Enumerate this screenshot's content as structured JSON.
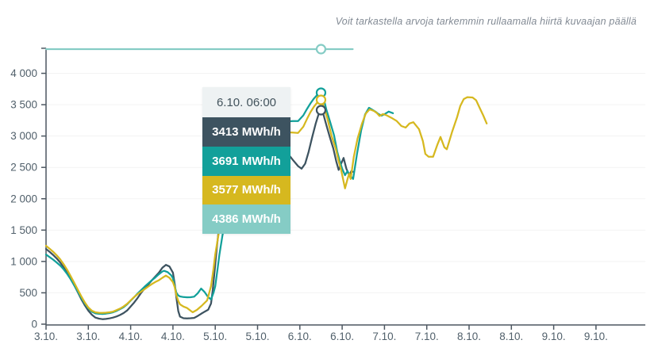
{
  "hint": "Voit tarkastella arvoja tarkemmin rullaamalla hiirtä kuvaajan päällä",
  "tooltip": {
    "time": "6.10. 06:00",
    "rows": [
      {
        "value": "3413 MWh/h",
        "color": "#3d5360"
      },
      {
        "value": "3691 MWh/h",
        "color": "#12a09a"
      },
      {
        "value": "3577 MWh/h",
        "color": "#d6b81f"
      },
      {
        "value": "4386 MWh/h",
        "color": "#85ccc5"
      }
    ]
  },
  "chart_data": {
    "type": "line",
    "unit": "MWh/h",
    "title": "",
    "xlabel": "",
    "ylabel": "",
    "grid": "horizontal-faint",
    "legend_position": "none",
    "ylim": [
      0,
      4400
    ],
    "xlim_hours": [
      0,
      170
    ],
    "y_ticks": [
      0,
      500,
      1000,
      1500,
      2000,
      2500,
      3000,
      3500,
      4000
    ],
    "y_tick_labels": [
      "0",
      "500",
      "1 000",
      "1 500",
      "2 000",
      "2 500",
      "3 000",
      "3 500",
      "4 000"
    ],
    "x_tick_hours": [
      0,
      12,
      24,
      36,
      48,
      60,
      72,
      84,
      96,
      108,
      120,
      132,
      144,
      156
    ],
    "x_tick_labels": [
      "3.10.",
      "3.10.",
      "4.10.",
      "4.10.",
      "5.10.",
      "5.10.",
      "6.10.",
      "6.10.",
      "7.10.",
      "7.10.",
      "8.10.",
      "8.10.",
      "9.10.",
      "9.10."
    ],
    "hover": {
      "hour": 78,
      "label": "6.10. 06:00",
      "values": [
        3413,
        3691,
        3577,
        4386
      ]
    },
    "series": [
      {
        "name": "series-dark-slate",
        "color": "#3d5360",
        "hover_value": 3413,
        "points": [
          [
            0,
            1200
          ],
          [
            1,
            1155
          ],
          [
            2,
            1105
          ],
          [
            3,
            1050
          ],
          [
            4,
            985
          ],
          [
            5,
            905
          ],
          [
            6,
            815
          ],
          [
            7,
            720
          ],
          [
            8,
            620
          ],
          [
            9,
            510
          ],
          [
            10,
            400
          ],
          [
            11,
            300
          ],
          [
            12,
            215
          ],
          [
            13,
            150
          ],
          [
            14,
            105
          ],
          [
            15,
            88
          ],
          [
            16,
            80
          ],
          [
            17,
            83
          ],
          [
            18,
            92
          ],
          [
            19,
            105
          ],
          [
            20,
            122
          ],
          [
            21,
            147
          ],
          [
            22,
            177
          ],
          [
            23,
            219
          ],
          [
            24,
            282
          ],
          [
            25,
            345
          ],
          [
            26,
            420
          ],
          [
            27,
            500
          ],
          [
            28,
            570
          ],
          [
            29,
            632
          ],
          [
            30,
            700
          ],
          [
            31,
            760
          ],
          [
            32,
            820
          ],
          [
            33,
            900
          ],
          [
            34,
            945
          ],
          [
            35,
            920
          ],
          [
            36,
            820
          ],
          [
            36.5,
            645
          ],
          [
            37,
            420
          ],
          [
            37.5,
            210
          ],
          [
            38,
            120
          ],
          [
            39,
            95
          ],
          [
            40,
            92
          ],
          [
            41,
            95
          ],
          [
            42,
            100
          ],
          [
            43,
            130
          ],
          [
            44,
            165
          ],
          [
            45,
            200
          ],
          [
            46,
            230
          ],
          [
            46.8,
            330
          ],
          [
            47.3,
            550
          ],
          [
            47.9,
            900
          ],
          [
            48.5,
            1250
          ],
          [
            49,
            1500
          ],
          [
            50,
            1850
          ],
          [
            51,
            2120
          ],
          [
            52,
            2350
          ],
          [
            54,
            2620
          ],
          [
            56,
            2800
          ],
          [
            58,
            2920
          ],
          [
            60,
            2990
          ],
          [
            62,
            3010
          ],
          [
            64,
            2970
          ],
          [
            66,
            2890
          ],
          [
            68,
            2760
          ],
          [
            70,
            2620
          ],
          [
            71.5,
            2520
          ],
          [
            72.5,
            2480
          ],
          [
            73.5,
            2560
          ],
          [
            74.5,
            2750
          ],
          [
            75.5,
            2980
          ],
          [
            76.5,
            3200
          ],
          [
            77.5,
            3380
          ],
          [
            78,
            3413
          ],
          [
            78.7,
            3340
          ],
          [
            79.5,
            3180
          ],
          [
            80.5,
            2980
          ],
          [
            81.5,
            2800
          ],
          [
            82.3,
            2600
          ],
          [
            83,
            2460
          ],
          [
            83.7,
            2560
          ],
          [
            84.4,
            2650
          ],
          [
            85.2,
            2480
          ],
          [
            86,
            2375
          ],
          [
            86.6,
            2440
          ],
          [
            87,
            2430
          ]
        ]
      },
      {
        "name": "series-teal",
        "color": "#12a09a",
        "hover_value": 3691,
        "points": [
          [
            0,
            1110
          ],
          [
            1,
            1070
          ],
          [
            2,
            1030
          ],
          [
            3,
            985
          ],
          [
            4,
            935
          ],
          [
            5,
            875
          ],
          [
            6,
            800
          ],
          [
            7,
            715
          ],
          [
            8,
            620
          ],
          [
            9,
            520
          ],
          [
            10,
            420
          ],
          [
            11,
            330
          ],
          [
            12,
            255
          ],
          [
            13,
            200
          ],
          [
            14,
            172
          ],
          [
            15,
            165
          ],
          [
            16,
            163
          ],
          [
            17,
            168
          ],
          [
            18,
            177
          ],
          [
            19,
            190
          ],
          [
            20,
            211
          ],
          [
            21,
            240
          ],
          [
            22,
            270
          ],
          [
            23,
            316
          ],
          [
            24,
            375
          ],
          [
            25,
            430
          ],
          [
            26,
            490
          ],
          [
            27,
            545
          ],
          [
            28,
            600
          ],
          [
            29,
            650
          ],
          [
            30,
            700
          ],
          [
            31,
            745
          ],
          [
            32,
            795
          ],
          [
            33,
            840
          ],
          [
            33.5,
            851
          ],
          [
            34.5,
            830
          ],
          [
            35.5,
            780
          ],
          [
            36,
            733
          ],
          [
            36.5,
            607
          ],
          [
            37,
            500
          ],
          [
            37.5,
            458
          ],
          [
            38,
            442
          ],
          [
            39,
            432
          ],
          [
            40,
            428
          ],
          [
            41,
            430
          ],
          [
            42,
            438
          ],
          [
            43,
            490
          ],
          [
            44,
            568
          ],
          [
            45,
            510
          ],
          [
            46,
            430
          ],
          [
            46.8,
            395
          ],
          [
            47.5,
            500
          ],
          [
            48,
            605
          ],
          [
            48.6,
            860
          ],
          [
            49.2,
            1114
          ],
          [
            50,
            1400
          ],
          [
            51,
            1700
          ],
          [
            52,
            1980
          ],
          [
            54,
            2420
          ],
          [
            56,
            2700
          ],
          [
            58,
            2870
          ],
          [
            60,
            2980
          ],
          [
            62,
            3070
          ],
          [
            64,
            3140
          ],
          [
            66,
            3195
          ],
          [
            68,
            3230
          ],
          [
            70,
            3240
          ],
          [
            71.5,
            3240
          ],
          [
            73,
            3330
          ],
          [
            74,
            3430
          ],
          [
            75,
            3520
          ],
          [
            76,
            3600
          ],
          [
            77,
            3660
          ],
          [
            78,
            3691
          ],
          [
            78.7,
            3610
          ],
          [
            79.5,
            3425
          ],
          [
            80.5,
            3240
          ],
          [
            81.7,
            3010
          ],
          [
            82.6,
            2750
          ],
          [
            83.3,
            2605
          ],
          [
            84,
            2480
          ],
          [
            84.8,
            2375
          ],
          [
            85.5,
            2440
          ],
          [
            86.2,
            2375
          ],
          [
            87.1,
            2315
          ],
          [
            88.2,
            2715
          ],
          [
            89.4,
            3094
          ],
          [
            90.5,
            3345
          ],
          [
            91.6,
            3450
          ],
          [
            92.5,
            3420
          ],
          [
            93.4,
            3390
          ],
          [
            94.3,
            3350
          ],
          [
            95.2,
            3325
          ],
          [
            96.2,
            3355
          ],
          [
            97.2,
            3390
          ],
          [
            98.4,
            3365
          ]
        ]
      },
      {
        "name": "series-yellow",
        "color": "#d6b81f",
        "hover_value": 3577,
        "points": [
          [
            0,
            1250
          ],
          [
            1,
            1205
          ],
          [
            2,
            1155
          ],
          [
            3,
            1100
          ],
          [
            4,
            1035
          ],
          [
            5,
            955
          ],
          [
            6,
            865
          ],
          [
            7,
            765
          ],
          [
            8,
            660
          ],
          [
            9,
            550
          ],
          [
            10,
            445
          ],
          [
            11,
            345
          ],
          [
            12,
            265
          ],
          [
            13,
            215
          ],
          [
            14,
            190
          ],
          [
            15,
            182
          ],
          [
            16,
            180
          ],
          [
            17,
            183
          ],
          [
            18,
            190
          ],
          [
            19,
            200
          ],
          [
            20,
            224
          ],
          [
            21,
            249
          ],
          [
            22,
            282
          ],
          [
            23,
            325
          ],
          [
            24,
            379
          ],
          [
            25,
            434
          ],
          [
            26,
            480
          ],
          [
            27,
            520
          ],
          [
            28,
            560
          ],
          [
            29,
            600
          ],
          [
            30,
            640
          ],
          [
            31,
            672
          ],
          [
            32,
            700
          ],
          [
            33,
            740
          ],
          [
            34,
            775
          ],
          [
            35,
            740
          ],
          [
            36,
            670
          ],
          [
            36.5,
            590
          ],
          [
            37,
            460
          ],
          [
            37.5,
            370
          ],
          [
            38,
            316
          ],
          [
            39,
            280
          ],
          [
            40,
            258
          ],
          [
            41,
            215
          ],
          [
            41.6,
            190
          ],
          [
            42.8,
            227
          ],
          [
            44.1,
            291
          ],
          [
            45.7,
            379
          ],
          [
            46.8,
            605
          ],
          [
            47.5,
            884
          ],
          [
            48,
            1114
          ],
          [
            49,
            1450
          ],
          [
            50,
            1750
          ],
          [
            51,
            2020
          ],
          [
            52,
            2250
          ],
          [
            54,
            2550
          ],
          [
            56,
            2750
          ],
          [
            58,
            2880
          ],
          [
            60,
            2950
          ],
          [
            62,
            3000
          ],
          [
            64,
            3030
          ],
          [
            66,
            3050
          ],
          [
            68,
            3060
          ],
          [
            70,
            3055
          ],
          [
            71.5,
            3050
          ],
          [
            73,
            3150
          ],
          [
            74,
            3270
          ],
          [
            75,
            3380
          ],
          [
            76,
            3470
          ],
          [
            77,
            3540
          ],
          [
            78,
            3577
          ],
          [
            78.8,
            3470
          ],
          [
            79.9,
            3260
          ],
          [
            81,
            3000
          ],
          [
            82.2,
            2794
          ],
          [
            83,
            2600
          ],
          [
            83.7,
            2460
          ],
          [
            84.8,
            2165
          ],
          [
            85.6,
            2330
          ],
          [
            86,
            2400
          ],
          [
            86.4,
            2315
          ],
          [
            87.3,
            2670
          ],
          [
            88.4,
            2965
          ],
          [
            89.6,
            3195
          ],
          [
            90.7,
            3360
          ],
          [
            91.8,
            3425
          ],
          [
            93,
            3400
          ],
          [
            93.8,
            3370
          ],
          [
            94.6,
            3320
          ],
          [
            95.6,
            3350
          ],
          [
            96.6,
            3330
          ],
          [
            98,
            3290
          ],
          [
            99.5,
            3240
          ],
          [
            100.8,
            3160
          ],
          [
            102,
            3135
          ],
          [
            103.1,
            3200
          ],
          [
            104.2,
            3220
          ],
          [
            105.8,
            3110
          ],
          [
            106.9,
            2920
          ],
          [
            107.6,
            2715
          ],
          [
            108.5,
            2670
          ],
          [
            109.8,
            2670
          ],
          [
            111,
            2860
          ],
          [
            111.9,
            2985
          ],
          [
            113,
            2820
          ],
          [
            113.7,
            2790
          ],
          [
            115.2,
            3070
          ],
          [
            116.6,
            3300
          ],
          [
            117.5,
            3480
          ],
          [
            118.5,
            3590
          ],
          [
            119.5,
            3620
          ],
          [
            121,
            3615
          ],
          [
            122,
            3570
          ],
          [
            123,
            3450
          ],
          [
            124,
            3330
          ],
          [
            125,
            3200
          ]
        ]
      },
      {
        "name": "series-light-teal",
        "color": "#85ccc5",
        "hover_value": 4386,
        "points": [
          [
            0,
            4386
          ],
          [
            87,
            4386
          ]
        ]
      }
    ],
    "style": {
      "axis_color": "#4d5761",
      "label_color": "#51606b",
      "grid_color": "#f3f3f3",
      "background": "#ffffff"
    }
  }
}
